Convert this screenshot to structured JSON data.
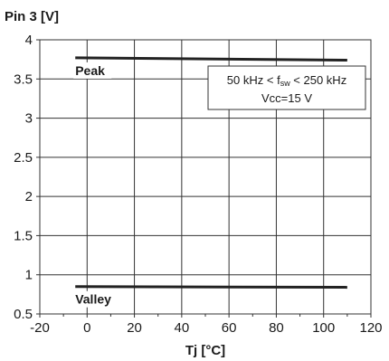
{
  "chart_data": {
    "type": "line",
    "title": "",
    "ylabel": "Pin 3 [V]",
    "xlabel": "Tj [°C]",
    "xlim": [
      -20,
      120
    ],
    "ylim": [
      0.5,
      4
    ],
    "xticks": [
      -20,
      0,
      20,
      40,
      60,
      80,
      100,
      120
    ],
    "yticks": [
      0.5,
      1,
      1.5,
      2,
      2.5,
      3,
      3.5,
      4
    ],
    "grid": true,
    "series": [
      {
        "name": "Peak",
        "x": [
          -5,
          110
        ],
        "y": [
          3.77,
          3.74
        ],
        "color": "#222222"
      },
      {
        "name": "Valley",
        "x": [
          -5,
          110
        ],
        "y": [
          0.85,
          0.84
        ],
        "color": "#222222"
      }
    ],
    "annotation": {
      "line1_prefix": "50 kHz < f",
      "line1_sub": "sw",
      "line1_suffix": " < 250 kHz",
      "line2": "Vcc=15 V"
    }
  }
}
